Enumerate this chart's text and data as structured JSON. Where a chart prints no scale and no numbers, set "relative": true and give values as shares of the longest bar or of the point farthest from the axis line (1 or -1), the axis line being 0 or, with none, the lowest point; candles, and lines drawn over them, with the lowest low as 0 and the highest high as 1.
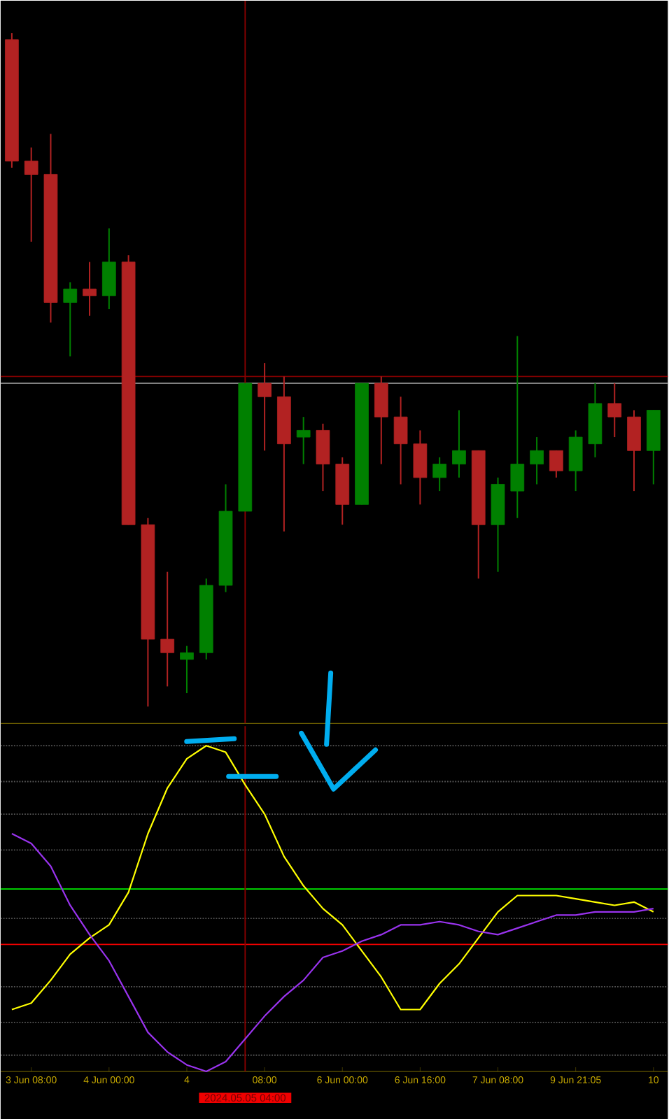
{
  "chart_data": [
    {
      "type": "candlestick",
      "relative": true,
      "categories": [
        null,
        null,
        null,
        null,
        null,
        null,
        null,
        null,
        null,
        null,
        null,
        null,
        null,
        null,
        null,
        null,
        null,
        null,
        null,
        null,
        null,
        null,
        null,
        null,
        null,
        null,
        null,
        null,
        null,
        null,
        null,
        null,
        null,
        null
      ],
      "ohlc": [
        [
          0.99,
          1.0,
          0.8,
          0.81
        ],
        [
          0.81,
          0.83,
          0.69,
          0.79
        ],
        [
          0.79,
          0.85,
          0.57,
          0.6
        ],
        [
          0.6,
          0.63,
          0.52,
          0.62
        ],
        [
          0.62,
          0.66,
          0.58,
          0.61
        ],
        [
          0.61,
          0.71,
          0.59,
          0.66
        ],
        [
          0.66,
          0.67,
          0.27,
          0.27
        ],
        [
          0.27,
          0.28,
          0.0,
          0.1
        ],
        [
          0.1,
          0.2,
          0.03,
          0.08
        ],
        [
          0.07,
          0.09,
          0.02,
          0.08
        ],
        [
          0.08,
          0.19,
          0.07,
          0.18
        ],
        [
          0.18,
          0.33,
          0.17,
          0.29
        ],
        [
          0.29,
          0.48,
          0.29,
          0.48
        ],
        [
          0.48,
          0.51,
          0.38,
          0.46
        ],
        [
          0.46,
          0.49,
          0.26,
          0.39
        ],
        [
          0.4,
          0.43,
          0.36,
          0.41
        ],
        [
          0.41,
          0.42,
          0.32,
          0.36
        ],
        [
          0.36,
          0.37,
          0.27,
          0.3
        ],
        [
          0.3,
          0.48,
          0.3,
          0.48
        ],
        [
          0.48,
          0.49,
          0.36,
          0.43
        ],
        [
          0.43,
          0.46,
          0.33,
          0.39
        ],
        [
          0.39,
          0.41,
          0.3,
          0.34
        ],
        [
          0.34,
          0.37,
          0.32,
          0.36
        ],
        [
          0.36,
          0.44,
          0.34,
          0.38
        ],
        [
          0.38,
          0.38,
          0.19,
          0.27
        ],
        [
          0.27,
          0.34,
          0.2,
          0.33
        ],
        [
          0.32,
          0.55,
          0.28,
          0.36
        ],
        [
          0.36,
          0.4,
          0.33,
          0.38
        ],
        [
          0.38,
          0.38,
          0.34,
          0.35
        ],
        [
          0.35,
          0.41,
          0.32,
          0.4
        ],
        [
          0.39,
          0.48,
          0.37,
          0.45
        ],
        [
          0.45,
          0.48,
          0.4,
          0.43
        ],
        [
          0.43,
          0.44,
          0.32,
          0.38
        ],
        [
          0.38,
          0.44,
          0.33,
          0.44
        ]
      ],
      "colors": [
        "#b22222",
        "#b22222",
        "#b22222",
        "#008000",
        "#b22222",
        "#008000",
        "#b22222",
        "#b22222",
        "#b22222",
        "#008000",
        "#008000",
        "#008000",
        "#008000",
        "#b22222",
        "#b22222",
        "#008000",
        "#b22222",
        "#b22222",
        "#008000",
        "#b22222",
        "#b22222",
        "#b22222",
        "#008000",
        "#008000",
        "#b22222",
        "#008000",
        "#008000",
        "#008000",
        "#b22222",
        "#008000",
        "#008000",
        "#b22222",
        "#b22222",
        "#008000"
      ],
      "ref_lines": [
        {
          "axis": "y",
          "value": 0.49,
          "color": "#8b0000"
        },
        {
          "axis": "y",
          "value": 0.48,
          "color": "#808080"
        }
      ]
    },
    {
      "type": "line",
      "relative": true,
      "annotations": [
        "2024.05.05 04:00"
      ],
      "categories": [
        null,
        "3 Jun 08:00",
        null,
        null,
        null,
        "4 Jun 00:00",
        null,
        null,
        null,
        "4",
        null,
        null,
        null,
        "08:00",
        null,
        null,
        null,
        "6 Jun 00:00",
        null,
        null,
        null,
        "6 Jun 16:00",
        null,
        null,
        null,
        "7 Jun 08:00",
        null,
        null,
        null,
        "9 Jun 21:05",
        null,
        null,
        null,
        "10"
      ],
      "series": [
        {
          "color": "#ffff00",
          "values": [
            0.19,
            0.21,
            0.28,
            0.36,
            0.41,
            0.45,
            0.55,
            0.73,
            0.87,
            0.96,
            1.0,
            0.98,
            0.88,
            0.79,
            0.66,
            0.57,
            0.5,
            0.45,
            0.37,
            0.29,
            0.19,
            0.19,
            0.27,
            0.33,
            0.41,
            0.49,
            0.54,
            0.54,
            0.54,
            0.53,
            0.52,
            0.51,
            0.52,
            0.49
          ]
        },
        {
          "color": "#9933ee",
          "values": [
            0.73,
            0.7,
            0.63,
            0.51,
            0.42,
            0.34,
            0.23,
            0.12,
            0.06,
            0.02,
            0.0,
            0.03,
            0.1,
            0.17,
            0.23,
            0.28,
            0.35,
            0.37,
            0.4,
            0.42,
            0.45,
            0.45,
            0.46,
            0.45,
            0.43,
            0.42,
            0.44,
            0.46,
            0.48,
            0.48,
            0.49,
            0.49,
            0.49,
            0.5
          ]
        }
      ],
      "ref_lines": [
        {
          "axis": "y",
          "value": 1.0,
          "color": "#555555",
          "line_style": "dotted"
        },
        {
          "axis": "y",
          "value": 0.89,
          "color": "#555555",
          "line_style": "dotted"
        },
        {
          "axis": "y",
          "value": 0.79,
          "color": "#555555",
          "line_style": "dotted"
        },
        {
          "axis": "y",
          "value": 0.68,
          "color": "#555555",
          "line_style": "dotted"
        },
        {
          "axis": "y",
          "value": 0.47,
          "color": "#555555",
          "line_style": "dotted"
        },
        {
          "axis": "y",
          "value": 0.26,
          "color": "#555555",
          "line_style": "dotted"
        },
        {
          "axis": "y",
          "value": 0.15,
          "color": "#555555",
          "line_style": "dotted"
        },
        {
          "axis": "y",
          "value": 0.05,
          "color": "#555555",
          "line_style": "dotted"
        },
        {
          "axis": "y",
          "value": 0.56,
          "color": "#00ee00"
        },
        {
          "axis": "y",
          "value": 0.39,
          "color": "#ee0000"
        }
      ]
    }
  ]
}
